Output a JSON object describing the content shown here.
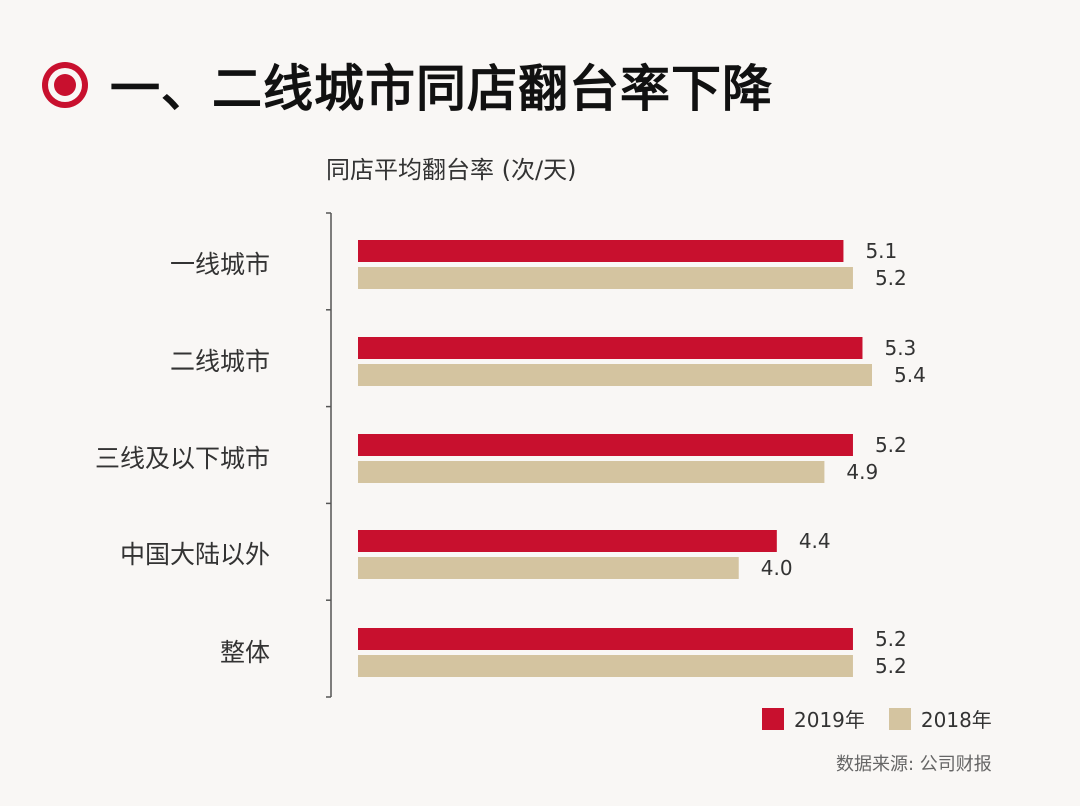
{
  "header": {
    "title": "一、二线城市同店翻台率下降",
    "icon": "target-icon",
    "accent": "#c8102e"
  },
  "chart_data": {
    "type": "bar",
    "orientation": "horizontal",
    "subtitle": "同店平均翻台率 (次/天)",
    "categories": [
      "一线城市",
      "二线城市",
      "三线及以下城市",
      "中国大陆以外",
      "整体"
    ],
    "series": [
      {
        "name": "2019年",
        "color": "#c8102e",
        "values": [
          5.1,
          5.3,
          5.2,
          4.4,
          5.2
        ],
        "labels": [
          "5.1",
          "5.3",
          "5.2",
          "4.4",
          "5.2"
        ]
      },
      {
        "name": "2018年",
        "color": "#d4c4a0",
        "values": [
          5.2,
          5.4,
          4.9,
          4.0,
          5.2
        ],
        "labels": [
          "5.2",
          "5.4",
          "4.9",
          "4.0",
          "5.2"
        ]
      }
    ],
    "legend_position": "bottom-right",
    "grid": false
  },
  "source": "数据来源: 公司财报"
}
